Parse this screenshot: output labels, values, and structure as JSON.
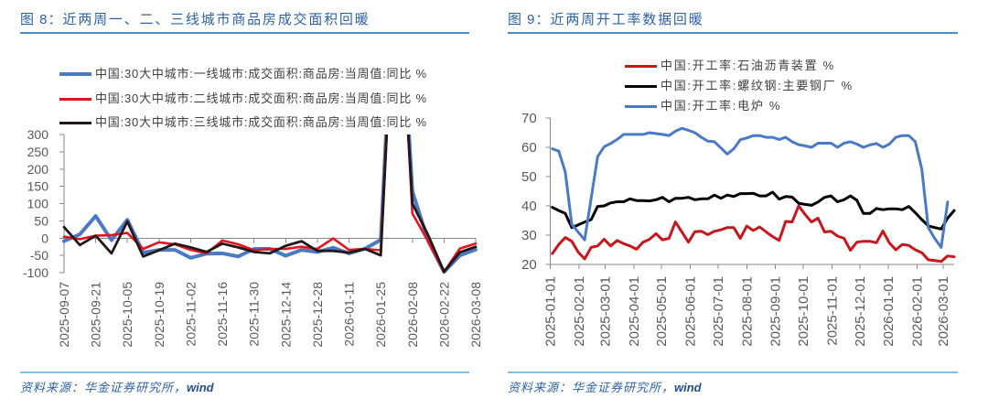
{
  "panels": [
    {
      "title": {
        "label": "图 8：",
        "text": "近两周一、二、三线城市商品房成交面积回暖"
      },
      "source": {
        "prefix": "资料来源：华金证券研究所，",
        "suffix": "wind"
      }
    },
    {
      "title": {
        "label": "图 9：",
        "text": "近两周开工率数据回暖"
      },
      "source": {
        "prefix": "资料来源：华金证券研究所，",
        "suffix": "wind"
      }
    }
  ],
  "chart_data": [
    {
      "type": "line",
      "title": "图 8：近两周一、二、三线城市商品房成交面积回暖",
      "xlabel": "",
      "ylabel": "",
      "x_scale": "category",
      "ylim": [
        -100,
        300
      ],
      "yticks": [
        -100,
        -50,
        0,
        50,
        100,
        150,
        200,
        250,
        300
      ],
      "x_axis_crosses": 0,
      "grid": false,
      "legend_position": "top",
      "x": [
        "2025-09-07",
        "2025-09-14",
        "2025-09-21",
        "2025-09-28",
        "2025-10-05",
        "2025-10-12",
        "2025-10-19",
        "2025-10-26",
        "2025-11-02",
        "2025-11-09",
        "2025-11-16",
        "2025-11-23",
        "2025-11-30",
        "2025-12-07",
        "2025-12-14",
        "2025-12-21",
        "2025-12-28",
        "2026-01-04",
        "2026-01-11",
        "2026-01-18",
        "2026-01-25",
        "2026-02-01",
        "2026-02-08",
        "2026-02-15",
        "2026-02-22",
        "2026-03-01",
        "2026-03-08"
      ],
      "xtick_labels": [
        "2025-09-07",
        "2025-09-21",
        "2025-10-05",
        "2025-10-19",
        "2025-11-02",
        "2025-11-16",
        "2025-11-30",
        "2025-12-14",
        "2025-12-28",
        "2026-01-11",
        "2026-01-25",
        "2026-02-08",
        "2026-02-22",
        "2026-03-08"
      ],
      "series": [
        {
          "key": "tier1",
          "name": "中国:30大中城市:一线城市:成交面积:商品房:当周值:同比 %",
          "color": "#4A7AC6",
          "values": [
            -9,
            11,
            64,
            -6,
            53,
            -42,
            -34,
            -34,
            -57,
            -45,
            -44,
            -53,
            -31,
            -31,
            -51,
            -34,
            -40,
            -28,
            -44,
            -31,
            -5,
            900,
            135,
            -8,
            -98,
            -50,
            -33
          ]
        },
        {
          "key": "tier2",
          "name": "中国:30大中城市:二线城市:成交面积:商品房:当周值:同比 %",
          "color": "#E3141F",
          "values": [
            4,
            -3,
            7,
            9,
            15,
            -31,
            -12,
            -18,
            -34,
            -44,
            -7,
            -18,
            -35,
            -31,
            -31,
            -25,
            -31,
            -1,
            -34,
            -31,
            -35,
            920,
            71,
            -10,
            -98,
            -30,
            -16
          ]
        },
        {
          "key": "tier3",
          "name": "中国:30大中城市:三线城市:成交面积:商品房:当周值:同比 %",
          "color": "#231815",
          "values": [
            32,
            -20,
            7,
            -44,
            48,
            -53,
            -35,
            -16,
            -27,
            -40,
            -16,
            -27,
            -40,
            -44,
            -22,
            -9,
            -37,
            -37,
            -42,
            -31,
            -50,
            880,
            100,
            8,
            -97,
            -41,
            -25
          ]
        }
      ]
    },
    {
      "type": "line",
      "title": "图 9：近两周开工率数据回暖",
      "xlabel": "",
      "ylabel": "",
      "x_scale": "time",
      "x_axis_range": [
        "2025-01-01",
        "2026-03-13"
      ],
      "ylim": [
        20,
        70
      ],
      "yticks": [
        20,
        30,
        40,
        50,
        60,
        70
      ],
      "grid": false,
      "legend_position": "top",
      "x": [
        "2025-01-03",
        "2025-01-10",
        "2025-01-17",
        "2025-01-24",
        "2025-01-31",
        "2025-02-07",
        "2025-02-14",
        "2025-02-21",
        "2025-02-28",
        "2025-03-07",
        "2025-03-14",
        "2025-03-21",
        "2025-03-28",
        "2025-04-04",
        "2025-04-11",
        "2025-04-18",
        "2025-04-25",
        "2025-05-02",
        "2025-05-09",
        "2025-05-16",
        "2025-05-23",
        "2025-05-30",
        "2025-06-06",
        "2025-06-13",
        "2025-06-20",
        "2025-06-27",
        "2025-07-04",
        "2025-07-11",
        "2025-07-18",
        "2025-07-25",
        "2025-08-01",
        "2025-08-08",
        "2025-08-15",
        "2025-08-22",
        "2025-08-29",
        "2025-09-05",
        "2025-09-12",
        "2025-09-19",
        "2025-09-26",
        "2025-10-03",
        "2025-10-10",
        "2025-10-17",
        "2025-10-24",
        "2025-10-31",
        "2025-11-07",
        "2025-11-14",
        "2025-11-21",
        "2025-11-28",
        "2025-12-05",
        "2025-12-12",
        "2025-12-19",
        "2025-12-26",
        "2026-01-02",
        "2026-01-09",
        "2026-01-16",
        "2026-01-23",
        "2026-01-30",
        "2026-02-06",
        "2026-02-13",
        "2026-02-20",
        "2026-02-27",
        "2026-03-06",
        "2026-03-13"
      ],
      "xtick_labels": [
        "2025-01-01",
        "2025-02-01",
        "2025-03-01",
        "2025-04-01",
        "2025-05-01",
        "2025-06-01",
        "2025-07-01",
        "2025-08-01",
        "2025-09-01",
        "2025-10-01",
        "2025-11-01",
        "2025-12-01",
        "2026-01-01",
        "2026-02-01",
        "2026-03-01"
      ],
      "series": [
        {
          "key": "asphalt",
          "name": "中国:开工率:石油沥青装置 %",
          "color": "#C8161D",
          "values": [
            23.7,
            26.8,
            29.2,
            27.9,
            24.2,
            21.9,
            25.8,
            26.3,
            28.6,
            26.3,
            28.2,
            27.1,
            26.3,
            25.2,
            27.6,
            28.6,
            30.5,
            28.4,
            28.9,
            34.5,
            31.1,
            27.6,
            31.2,
            31.3,
            30.2,
            31.3,
            31.8,
            32.6,
            32.6,
            28.9,
            33.1,
            31.6,
            32.8,
            31.1,
            29.5,
            28.2,
            34.7,
            34.5,
            40.0,
            37.1,
            34.5,
            35.8,
            31.1,
            31.3,
            29.7,
            28.9,
            24.8,
            27.6,
            27.9,
            27.9,
            27.4,
            31.4,
            27.4,
            25.0,
            26.8,
            26.5,
            25.0,
            24.0,
            21.6,
            21.3,
            21.0,
            22.9,
            22.6
          ]
        },
        {
          "key": "rebar",
          "name": "中国:开工率:螺纹钢:主要钢厂 %",
          "color": "#000000",
          "values": [
            39.5,
            38.4,
            37.4,
            32.6,
            33.5,
            34.5,
            35.3,
            39.8,
            40.0,
            41.0,
            41.4,
            41.4,
            42.4,
            41.8,
            41.8,
            41.7,
            42.1,
            42.9,
            41.4,
            42.6,
            42.6,
            42.9,
            42.1,
            42.4,
            42.4,
            43.7,
            42.6,
            43.7,
            43.2,
            44.2,
            44.2,
            44.3,
            43.4,
            43.4,
            44.7,
            42.3,
            43.2,
            43.0,
            40.9,
            40.5,
            40.2,
            41.3,
            42.9,
            43.4,
            41.4,
            42.1,
            43.4,
            41.9,
            37.4,
            37.4,
            39.1,
            38.7,
            39.0,
            39.0,
            38.7,
            39.8,
            37.7,
            35.3,
            33.2,
            32.6,
            32.1,
            35.8,
            38.4
          ]
        },
        {
          "key": "electric-furnace",
          "name": "中国:开工率:电炉 %",
          "color": "#4A7AC6",
          "values": [
            59.5,
            58.7,
            51.6,
            33.7,
            31.0,
            28.4,
            42.6,
            56.8,
            60.2,
            61.3,
            62.7,
            64.4,
            64.4,
            64.4,
            64.4,
            65.0,
            64.7,
            64.4,
            64.0,
            65.5,
            66.5,
            65.8,
            65.0,
            63.4,
            62.1,
            61.9,
            59.8,
            57.7,
            59.5,
            62.6,
            63.2,
            64.0,
            64.0,
            63.4,
            63.4,
            62.7,
            63.4,
            61.9,
            60.9,
            60.5,
            60.0,
            61.4,
            61.4,
            61.4,
            60.0,
            61.4,
            61.9,
            61.1,
            60.0,
            60.8,
            61.3,
            60.0,
            61.1,
            63.4,
            64.0,
            64.0,
            61.9,
            52.6,
            32.6,
            28.9,
            25.8,
            41.3,
            null
          ]
        }
      ]
    }
  ]
}
